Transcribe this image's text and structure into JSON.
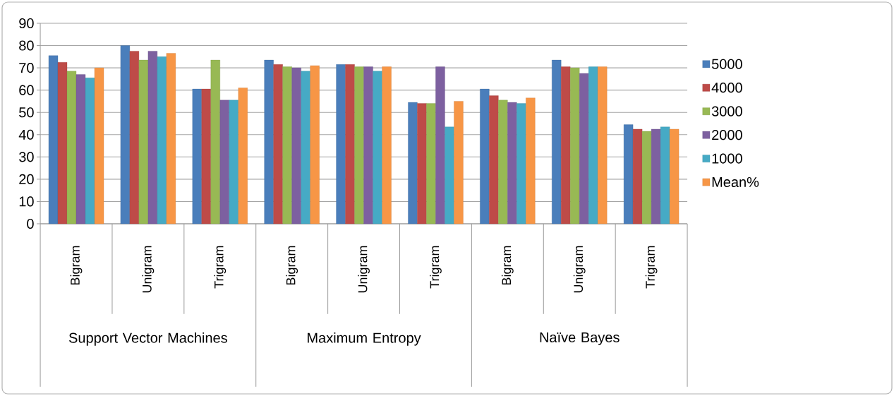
{
  "chart_data": {
    "type": "bar",
    "categories": [
      "Bigram",
      "Unigram",
      "Trigram",
      "Bigram",
      "Unigram",
      "Trigram",
      "Bigram",
      "Unigram",
      "Trigram"
    ],
    "series": [
      {
        "name": "5000",
        "color": "#4a7ebb",
        "values": [
          75.5,
          80,
          60.5,
          73.5,
          71.5,
          54.5,
          60.5,
          73.5,
          44.5
        ]
      },
      {
        "name": "4000",
        "color": "#be4b48",
        "values": [
          72.5,
          77.5,
          60.5,
          71.5,
          71.5,
          54,
          57.5,
          70.5,
          42.5
        ]
      },
      {
        "name": "3000",
        "color": "#98b954",
        "values": [
          68.5,
          73.5,
          73.5,
          70.5,
          70.5,
          54,
          55.5,
          70,
          41.5
        ]
      },
      {
        "name": "2000",
        "color": "#7d60a0",
        "values": [
          67,
          77.5,
          55.5,
          70,
          70.5,
          70.5,
          54.5,
          67.5,
          42.5
        ]
      },
      {
        "name": "1000",
        "color": "#46aac5",
        "values": [
          65.5,
          75,
          55.5,
          68.5,
          68.5,
          43.5,
          54,
          70.5,
          43.5
        ]
      },
      {
        "name": "Mean%",
        "color": "#f79646",
        "values": [
          70,
          76.5,
          61,
          71,
          70.5,
          55,
          56.5,
          70.5,
          42.5
        ]
      }
    ],
    "annotations": [
      "Support Vector Machines",
      "Maximum Entropy",
      "Naïve Bayes"
    ],
    "ylim": [
      0,
      90
    ],
    "yticks": [
      0,
      10,
      20,
      30,
      40,
      50,
      60,
      70,
      80,
      90
    ],
    "grid": "y",
    "legend": "right"
  }
}
